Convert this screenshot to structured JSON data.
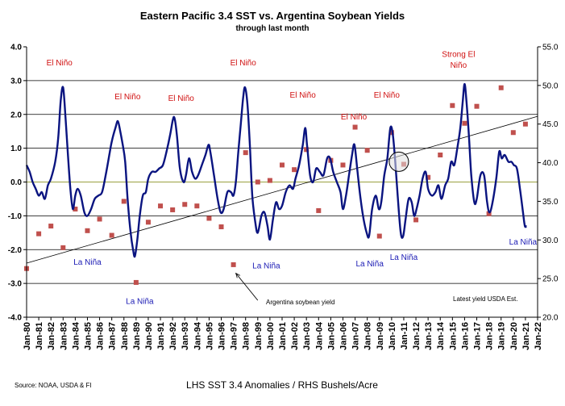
{
  "chart_data": {
    "type": "line",
    "title": "Eastern Pacific 3.4 SST vs. Argentina Soybean Yields",
    "subtitle": "through last month",
    "xlabel": "LHS SST 3.4 Anomalies  /  RHS Bushels/Acre",
    "source": "Source: NOAA, USDA & FI",
    "note": "Latest yield USDA Est.",
    "ylim_left": [
      -4.0,
      4.0
    ],
    "ylim_right": [
      20.0,
      55.0
    ],
    "left_ticks": [
      "-4.0",
      "-3.0",
      "-2.0",
      "-1.0",
      "0.0",
      "1.0",
      "2.0",
      "3.0",
      "4.0"
    ],
    "right_ticks": [
      "20.0",
      "25.0",
      "30.0",
      "35.0",
      "40.0",
      "45.0",
      "50.0",
      "55.0"
    ],
    "x_ticks": [
      "Jan-80",
      "Jan-81",
      "Jan-82",
      "Jan-83",
      "Jan-84",
      "Jan-85",
      "Jan-86",
      "Jan-87",
      "Jan-88",
      "Jan-89",
      "Jan-90",
      "Jan-91",
      "Jan-92",
      "Jan-93",
      "Jan-94",
      "Jan-95",
      "Jan-96",
      "Jan-97",
      "Jan-98",
      "Jan-99",
      "Jan-00",
      "Jan-01",
      "Jan-02",
      "Jan-03",
      "Jan-04",
      "Jan-05",
      "Jan-06",
      "Jan-07",
      "Jan-08",
      "Jan-09",
      "Jan-10",
      "Jan-11",
      "Jan-12",
      "Jan-13",
      "Jan-14",
      "Jan-15",
      "Jan-16",
      "Jan-17",
      "Jan-18",
      "Jan-19",
      "Jan-20",
      "Jan-21",
      "Jan-22"
    ],
    "grid": "horizontal",
    "colors": {
      "sst": "#0a1480",
      "yield": "#c0504d",
      "elnino": "#d01010",
      "lanina": "#1a1ab4",
      "trend": "#000000",
      "grid": "#000000"
    },
    "sst_series": {
      "name": "SST 3.4 Anomaly",
      "knots": [
        [
          1980.0,
          0.5
        ],
        [
          1980.25,
          0.3
        ],
        [
          1980.5,
          0.0
        ],
        [
          1980.75,
          -0.2
        ],
        [
          1981.0,
          -0.4
        ],
        [
          1981.25,
          -0.3
        ],
        [
          1981.5,
          -0.5
        ],
        [
          1981.75,
          -0.1
        ],
        [
          1982.0,
          0.1
        ],
        [
          1982.35,
          0.6
        ],
        [
          1982.6,
          1.3
        ],
        [
          1982.8,
          2.4
        ],
        [
          1983.0,
          2.8
        ],
        [
          1983.2,
          1.9
        ],
        [
          1983.4,
          0.8
        ],
        [
          1983.6,
          -0.2
        ],
        [
          1983.8,
          -0.8
        ],
        [
          1984.0,
          -0.4
        ],
        [
          1984.2,
          -0.2
        ],
        [
          1984.45,
          -0.4
        ],
        [
          1984.75,
          -0.9
        ],
        [
          1985.0,
          -1.0
        ],
        [
          1985.3,
          -0.8
        ],
        [
          1985.6,
          -0.5
        ],
        [
          1985.9,
          -0.4
        ],
        [
          1986.2,
          -0.3
        ],
        [
          1986.5,
          0.2
        ],
        [
          1986.8,
          0.8
        ],
        [
          1987.0,
          1.2
        ],
        [
          1987.3,
          1.6
        ],
        [
          1987.5,
          1.8
        ],
        [
          1987.7,
          1.5
        ],
        [
          1987.9,
          1.1
        ],
        [
          1988.1,
          0.6
        ],
        [
          1988.3,
          -0.5
        ],
        [
          1988.55,
          -1.5
        ],
        [
          1988.75,
          -2.0
        ],
        [
          1988.9,
          -2.2
        ],
        [
          1989.1,
          -1.7
        ],
        [
          1989.3,
          -1.0
        ],
        [
          1989.55,
          -0.4
        ],
        [
          1989.8,
          -0.3
        ],
        [
          1990.0,
          0.1
        ],
        [
          1990.3,
          0.3
        ],
        [
          1990.6,
          0.3
        ],
        [
          1990.9,
          0.4
        ],
        [
          1991.2,
          0.5
        ],
        [
          1991.5,
          0.9
        ],
        [
          1991.8,
          1.4
        ],
        [
          1992.0,
          1.8
        ],
        [
          1992.15,
          1.9
        ],
        [
          1992.35,
          1.4
        ],
        [
          1992.6,
          0.4
        ],
        [
          1992.9,
          0.0
        ],
        [
          1993.1,
          0.2
        ],
        [
          1993.35,
          0.7
        ],
        [
          1993.6,
          0.3
        ],
        [
          1993.85,
          0.1
        ],
        [
          1994.1,
          0.2
        ],
        [
          1994.4,
          0.5
        ],
        [
          1994.7,
          0.8
        ],
        [
          1994.95,
          1.1
        ],
        [
          1995.1,
          0.9
        ],
        [
          1995.4,
          0.2
        ],
        [
          1995.7,
          -0.5
        ],
        [
          1995.95,
          -0.9
        ],
        [
          1996.2,
          -0.8
        ],
        [
          1996.5,
          -0.3
        ],
        [
          1996.8,
          -0.3
        ],
        [
          1997.0,
          -0.4
        ],
        [
          1997.2,
          0.0
        ],
        [
          1997.4,
          0.9
        ],
        [
          1997.6,
          1.7
        ],
        [
          1997.8,
          2.5
        ],
        [
          1997.95,
          2.8
        ],
        [
          1998.15,
          2.3
        ],
        [
          1998.35,
          1.1
        ],
        [
          1998.55,
          -0.4
        ],
        [
          1998.8,
          -1.2
        ],
        [
          1999.0,
          -1.5
        ],
        [
          1999.3,
          -1.0
        ],
        [
          1999.55,
          -0.9
        ],
        [
          1999.8,
          -1.3
        ],
        [
          2000.0,
          -1.7
        ],
        [
          2000.25,
          -1.1
        ],
        [
          2000.5,
          -0.6
        ],
        [
          2000.75,
          -0.8
        ],
        [
          2001.0,
          -0.7
        ],
        [
          2001.3,
          -0.3
        ],
        [
          2001.6,
          -0.1
        ],
        [
          2001.9,
          -0.2
        ],
        [
          2002.1,
          0.1
        ],
        [
          2002.4,
          0.5
        ],
        [
          2002.7,
          1.1
        ],
        [
          2002.9,
          1.6
        ],
        [
          2003.05,
          1.1
        ],
        [
          2003.3,
          0.2
        ],
        [
          2003.55,
          0.0
        ],
        [
          2003.8,
          0.4
        ],
        [
          2004.1,
          0.3
        ],
        [
          2004.4,
          0.2
        ],
        [
          2004.7,
          0.7
        ],
        [
          2004.95,
          0.7
        ],
        [
          2005.2,
          0.3
        ],
        [
          2005.5,
          0.0
        ],
        [
          2005.8,
          -0.3
        ],
        [
          2006.0,
          -0.8
        ],
        [
          2006.25,
          -0.4
        ],
        [
          2006.5,
          0.2
        ],
        [
          2006.75,
          0.8
        ],
        [
          2006.95,
          1.1
        ],
        [
          2007.2,
          0.3
        ],
        [
          2007.45,
          -0.5
        ],
        [
          2007.7,
          -1.1
        ],
        [
          2007.95,
          -1.5
        ],
        [
          2008.15,
          -1.6
        ],
        [
          2008.4,
          -0.8
        ],
        [
          2008.7,
          -0.4
        ],
        [
          2008.95,
          -0.8
        ],
        [
          2009.15,
          -0.6
        ],
        [
          2009.4,
          0.2
        ],
        [
          2009.65,
          0.7
        ],
        [
          2009.9,
          1.6
        ],
        [
          2010.1,
          1.4
        ],
        [
          2010.3,
          0.6
        ],
        [
          2010.5,
          -0.4
        ],
        [
          2010.75,
          -1.5
        ],
        [
          2010.95,
          -1.6
        ],
        [
          2011.15,
          -1.1
        ],
        [
          2011.4,
          -0.5
        ],
        [
          2011.65,
          -0.6
        ],
        [
          2011.85,
          -1.0
        ],
        [
          2012.05,
          -0.8
        ],
        [
          2012.3,
          -0.4
        ],
        [
          2012.55,
          0.1
        ],
        [
          2012.8,
          0.3
        ],
        [
          2013.0,
          -0.2
        ],
        [
          2013.3,
          -0.4
        ],
        [
          2013.6,
          -0.3
        ],
        [
          2013.85,
          -0.1
        ],
        [
          2014.1,
          -0.5
        ],
        [
          2014.4,
          -0.1
        ],
        [
          2014.65,
          0.1
        ],
        [
          2014.9,
          0.6
        ],
        [
          2015.15,
          0.5
        ],
        [
          2015.4,
          1.0
        ],
        [
          2015.65,
          1.6
        ],
        [
          2015.85,
          2.4
        ],
        [
          2016.0,
          2.9
        ],
        [
          2016.15,
          2.4
        ],
        [
          2016.35,
          1.4
        ],
        [
          2016.55,
          0.2
        ],
        [
          2016.8,
          -0.6
        ],
        [
          2017.0,
          -0.5
        ],
        [
          2017.3,
          0.2
        ],
        [
          2017.6,
          0.2
        ],
        [
          2017.85,
          -0.6
        ],
        [
          2018.05,
          -0.9
        ],
        [
          2018.3,
          -0.6
        ],
        [
          2018.6,
          0.1
        ],
        [
          2018.85,
          0.9
        ],
        [
          2019.05,
          0.7
        ],
        [
          2019.3,
          0.8
        ],
        [
          2019.6,
          0.6
        ],
        [
          2019.85,
          0.6
        ],
        [
          2020.05,
          0.5
        ],
        [
          2020.3,
          0.4
        ],
        [
          2020.55,
          -0.2
        ],
        [
          2020.8,
          -0.9
        ],
        [
          2020.95,
          -1.3
        ],
        [
          2021.1,
          -1.3
        ]
      ]
    },
    "yield_series": {
      "name": "Argentina soybean yield",
      "points": [
        [
          1980.0,
          26.3
        ],
        [
          1981.0,
          30.8
        ],
        [
          1982.0,
          31.8
        ],
        [
          1983.0,
          29.0
        ],
        [
          1984.0,
          34.0
        ],
        [
          1985.0,
          31.2
        ],
        [
          1986.0,
          32.7
        ],
        [
          1987.0,
          30.6
        ],
        [
          1988.0,
          35.0
        ],
        [
          1989.0,
          24.5
        ],
        [
          1990.0,
          32.3
        ],
        [
          1991.0,
          34.4
        ],
        [
          1992.0,
          33.9
        ],
        [
          1993.0,
          34.6
        ],
        [
          1994.0,
          34.4
        ],
        [
          1995.0,
          32.8
        ],
        [
          1996.0,
          31.7
        ],
        [
          1997.0,
          26.8
        ],
        [
          1998.0,
          41.3
        ],
        [
          1999.0,
          37.5
        ],
        [
          2000.0,
          37.7
        ],
        [
          2001.0,
          39.7
        ],
        [
          2002.0,
          39.1
        ],
        [
          2003.0,
          41.7
        ],
        [
          2004.0,
          33.8
        ],
        [
          2005.0,
          40.3
        ],
        [
          2006.0,
          39.7
        ],
        [
          2007.0,
          44.6
        ],
        [
          2008.0,
          41.6
        ],
        [
          2009.0,
          30.5
        ],
        [
          2010.0,
          43.9
        ],
        [
          2011.0,
          39.8
        ],
        [
          2012.0,
          32.6
        ],
        [
          2013.0,
          38.1
        ],
        [
          2014.0,
          41.0
        ],
        [
          2015.0,
          47.4
        ],
        [
          2016.0,
          45.1
        ],
        [
          2017.0,
          47.3
        ],
        [
          2018.0,
          33.4
        ],
        [
          2019.0,
          49.7
        ],
        [
          2020.0,
          43.9
        ],
        [
          2021.0,
          45.0
        ]
      ]
    },
    "trend": {
      "start": [
        1980.0,
        27.0
      ],
      "end": [
        2022.0,
        46.0
      ]
    },
    "annotations": [
      {
        "text": "El Niño",
        "x": 1982.7,
        "y": 3.45,
        "kind": "elnino"
      },
      {
        "text": "El Niño",
        "x": 1988.3,
        "y": 2.45,
        "kind": "elnino"
      },
      {
        "text": "El Niño",
        "x": 1992.7,
        "y": 2.4,
        "kind": "elnino"
      },
      {
        "text": "El Niño",
        "x": 1997.8,
        "y": 3.45,
        "kind": "elnino"
      },
      {
        "text": "El Niño",
        "x": 2002.7,
        "y": 2.5,
        "kind": "elnino"
      },
      {
        "text": "El Niño",
        "x": 2006.9,
        "y": 1.85,
        "kind": "elnino"
      },
      {
        "text": "El Niño",
        "x": 2009.6,
        "y": 2.5,
        "kind": "elnino"
      },
      {
        "text": "Strong El",
        "x": 2015.5,
        "y": 3.7,
        "kind": "elnino"
      },
      {
        "text": "Niño",
        "x": 2015.5,
        "y": 3.38,
        "kind": "elnino"
      },
      {
        "text": "La Niña",
        "x": 1985.0,
        "y": -2.45,
        "kind": "lanina"
      },
      {
        "text": "La Niña",
        "x": 1989.3,
        "y": -3.6,
        "kind": "lanina"
      },
      {
        "text": "La Niña",
        "x": 1999.7,
        "y": -2.55,
        "kind": "lanina"
      },
      {
        "text": "La Niña",
        "x": 2008.2,
        "y": -2.5,
        "kind": "lanina"
      },
      {
        "text": "La Niña",
        "x": 2011.0,
        "y": -2.3,
        "kind": "lanina"
      },
      {
        "text": "La Niña",
        "x": 2020.8,
        "y": -1.85,
        "kind": "lanina"
      }
    ],
    "callout": {
      "text": "Argentina soybean yield",
      "arrow_from": [
        1999.0,
        -3.5
      ],
      "arrow_to": [
        1997.2,
        -2.7
      ]
    },
    "highlight_circle": {
      "x": 2010.6,
      "y": 0.6
    }
  }
}
